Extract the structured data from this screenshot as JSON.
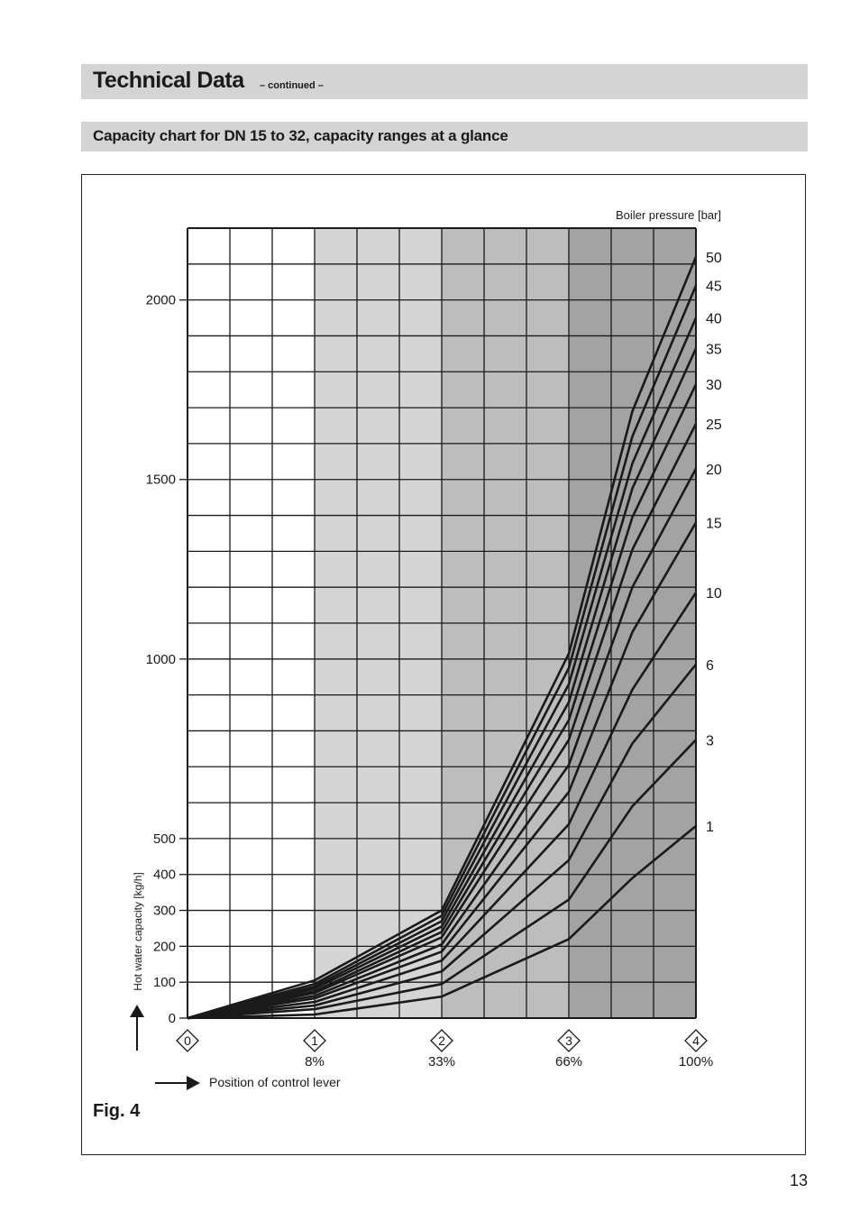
{
  "header": {
    "title": "Technical Data",
    "continued": "– continued –",
    "subtitle": "Capacity chart for DN 15 to 32, capacity ranges at a glance"
  },
  "figure_label": "Fig. 4",
  "page_number": "13",
  "colors": {
    "band_white": "#ffffff",
    "band_light": "#d5d5d5",
    "band_mid": "#bdbdbd",
    "band_dark": "#a3a3a3",
    "line": "#1a1a1a",
    "header_bar": "#d4d4d4"
  },
  "chart_data": {
    "type": "line",
    "ylabel": "Hot water capacity [kg/h]",
    "xlabel": "Position of control lever",
    "legend_title": "Boiler pressure [bar]",
    "ylim": [
      0,
      2200
    ],
    "yticks": [
      {
        "value": 0,
        "label": "0"
      },
      {
        "value": 100,
        "label": "100"
      },
      {
        "value": 200,
        "label": "200"
      },
      {
        "value": 300,
        "label": "300"
      },
      {
        "value": 400,
        "label": "400"
      },
      {
        "value": 500,
        "label": "500"
      },
      {
        "value": 1000,
        "label": "1000"
      },
      {
        "value": 1500,
        "label": "1500"
      },
      {
        "value": 2000,
        "label": "2000"
      }
    ],
    "xlim": [
      0,
      4
    ],
    "xticks": [
      {
        "value": 0,
        "label": "0",
        "percent": ""
      },
      {
        "value": 1,
        "label": "1",
        "percent": "8%"
      },
      {
        "value": 2,
        "label": "2",
        "percent": "33%"
      },
      {
        "value": 3,
        "label": "3",
        "percent": "66%"
      },
      {
        "value": 4,
        "label": "4",
        "percent": "100%"
      }
    ],
    "grid": true,
    "shaded_bands": [
      {
        "from": 0,
        "to": 1,
        "shade": "white"
      },
      {
        "from": 1,
        "to": 2,
        "shade": "light"
      },
      {
        "from": 2,
        "to": 3,
        "shade": "mid"
      },
      {
        "from": 3,
        "to": 4,
        "shade": "dark"
      }
    ],
    "x": [
      0,
      1,
      2,
      3,
      3.5,
      4
    ],
    "series": [
      {
        "name": "1",
        "values": [
          0,
          10,
          60,
          220,
          390,
          535
        ]
      },
      {
        "name": "3",
        "values": [
          0,
          25,
          95,
          330,
          590,
          775
        ]
      },
      {
        "name": "6",
        "values": [
          0,
          35,
          130,
          440,
          765,
          985
        ]
      },
      {
        "name": "10",
        "values": [
          0,
          45,
          160,
          540,
          915,
          1185
        ]
      },
      {
        "name": "15",
        "values": [
          0,
          55,
          185,
          630,
          1075,
          1380
        ]
      },
      {
        "name": "20",
        "values": [
          0,
          62,
          205,
          705,
          1200,
          1530
        ]
      },
      {
        "name": "25",
        "values": [
          0,
          70,
          225,
          775,
          1305,
          1655
        ]
      },
      {
        "name": "30",
        "values": [
          0,
          75,
          240,
          830,
          1395,
          1765
        ]
      },
      {
        "name": "35",
        "values": [
          0,
          82,
          255,
          880,
          1475,
          1865
        ]
      },
      {
        "name": "40",
        "values": [
          0,
          88,
          270,
          930,
          1545,
          1950
        ]
      },
      {
        "name": "45",
        "values": [
          0,
          95,
          285,
          975,
          1620,
          2040
        ]
      },
      {
        "name": "50",
        "values": [
          0,
          105,
          300,
          1015,
          1690,
          2120
        ]
      }
    ]
  }
}
